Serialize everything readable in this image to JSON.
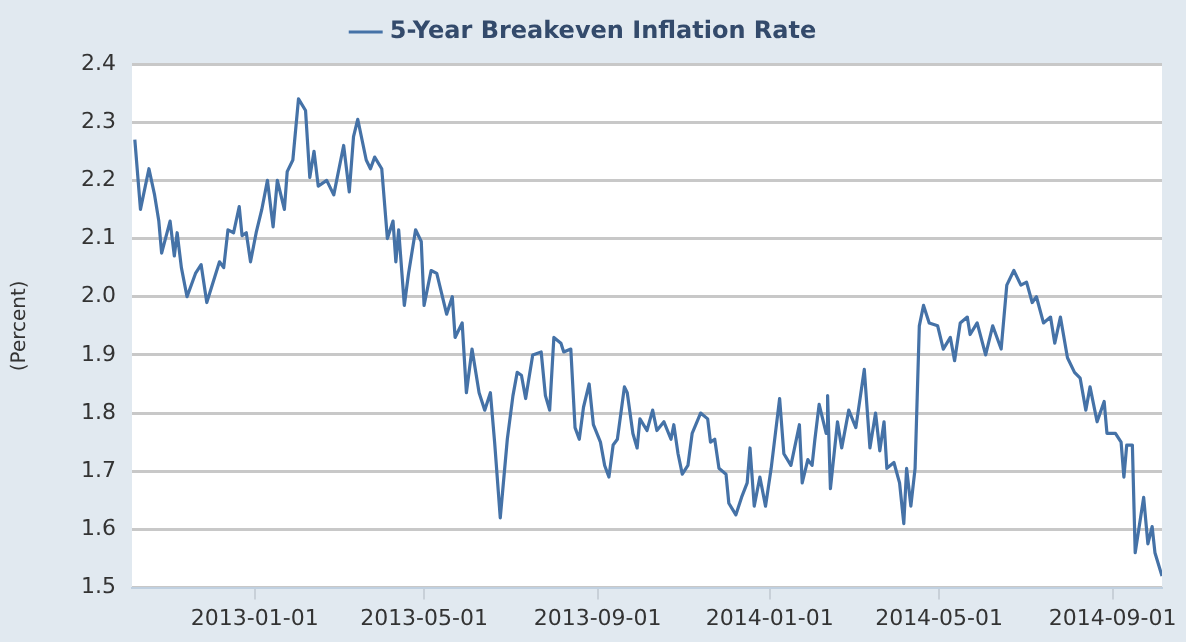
{
  "chart_data": {
    "type": "line",
    "ylabel": "(Percent)",
    "legend": "top",
    "grid": "y",
    "marker": "none",
    "line_style": "solid",
    "xlim": [
      "2012-10-06",
      "2014-10-06"
    ],
    "xticks": [
      "2013-01-01",
      "2013-05-01",
      "2013-09-01",
      "2014-01-01",
      "2014-05-01",
      "2014-09-01"
    ],
    "ylim": [
      1.5,
      2.4
    ],
    "yticks": [
      1.5,
      1.6,
      1.7,
      1.8,
      1.9,
      {
        "value": 2,
        "label": "2.0"
      },
      2.1,
      2.2,
      2.3,
      2.4
    ],
    "x": [
      "2012-10-08",
      "2012-10-12",
      "2012-10-18",
      "2012-10-22",
      "2012-10-25",
      "2012-10-27",
      "2012-11-02",
      "2012-11-05",
      "2012-11-07",
      "2012-11-10",
      "2012-11-14",
      "2012-11-20",
      "2012-11-24",
      "2012-11-28",
      "2012-12-07",
      "2012-12-10",
      "2012-12-13",
      "2012-12-17",
      "2012-12-21",
      "2012-12-23",
      "2012-12-26",
      "2012-12-29",
      "2013-01-02",
      "2013-01-06",
      "2013-01-10",
      "2013-01-14",
      "2013-01-17",
      "2013-01-22",
      "2013-01-24",
      "2013-01-28",
      "2013-02-01",
      "2013-02-06",
      "2013-02-09",
      "2013-02-12",
      "2013-02-15",
      "2013-02-21",
      "2013-02-26",
      "2013-03-05",
      "2013-03-09",
      "2013-03-12",
      "2013-03-15",
      "2013-03-21",
      "2013-03-24",
      "2013-03-27",
      "2013-04-01",
      "2013-04-05",
      "2013-04-09",
      "2013-04-11",
      "2013-04-13",
      "2013-04-17",
      "2013-04-20",
      "2013-04-25",
      "2013-04-29",
      "2013-05-01",
      "2013-05-06",
      "2013-05-10",
      "2013-05-17",
      "2013-05-21",
      "2013-05-23",
      "2013-05-28",
      "2013-05-31",
      "2013-06-04",
      "2013-06-09",
      "2013-06-13",
      "2013-06-17",
      "2013-06-20",
      "2013-06-24",
      "2013-06-29",
      "2013-07-03",
      "2013-07-06",
      "2013-07-09",
      "2013-07-12",
      "2013-07-17",
      "2013-07-23",
      "2013-07-26",
      "2013-07-29",
      "2013-08-01",
      "2013-08-06",
      "2013-08-08",
      "2013-08-13",
      "2013-08-16",
      "2013-08-19",
      "2013-08-22",
      "2013-08-26",
      "2013-08-29",
      "2013-09-03",
      "2013-09-06",
      "2013-09-09",
      "2013-09-12",
      "2013-09-15",
      "2013-09-20",
      "2013-09-22",
      "2013-09-26",
      "2013-09-29",
      "2013-10-01",
      "2013-10-06",
      "2013-10-10",
      "2013-10-13",
      "2013-10-18",
      "2013-10-23",
      "2013-10-25",
      "2013-10-28",
      "2013-10-31",
      "2013-11-04",
      "2013-11-07",
      "2013-11-13",
      "2013-11-18",
      "2013-11-20",
      "2013-11-23",
      "2013-11-26",
      "2013-12-01",
      "2013-12-03",
      "2013-12-08",
      "2013-12-12",
      "2013-12-16",
      "2013-12-18",
      "2013-12-21",
      "2013-12-25",
      "2013-12-29",
      "2014-01-02",
      "2014-01-05",
      "2014-01-08",
      "2014-01-11",
      "2014-01-16",
      "2014-01-22",
      "2014-01-24",
      "2014-01-28",
      "2014-01-31",
      "2014-02-02",
      "2014-02-05",
      "2014-02-10",
      "2014-02-11",
      "2014-02-13",
      "2014-02-18",
      "2014-02-21",
      "2014-02-26",
      "2014-03-03",
      "2014-03-09",
      "2014-03-13",
      "2014-03-17",
      "2014-03-20",
      "2014-03-23",
      "2014-03-25",
      "2014-03-30",
      "2014-04-03",
      "2014-04-06",
      "2014-04-08",
      "2014-04-11",
      "2014-04-14",
      "2014-04-17",
      "2014-04-20",
      "2014-04-24",
      "2014-04-30",
      "2014-05-04",
      "2014-05-09",
      "2014-05-12",
      "2014-05-16",
      "2014-05-21",
      "2014-05-23",
      "2014-05-28",
      "2014-06-03",
      "2014-06-08",
      "2014-06-14",
      "2014-06-18",
      "2014-06-23",
      "2014-06-28",
      "2014-07-02",
      "2014-07-06",
      "2014-07-09",
      "2014-07-14",
      "2014-07-19",
      "2014-07-22",
      "2014-07-26",
      "2014-07-31",
      "2014-08-05",
      "2014-08-09",
      "2014-08-13",
      "2014-08-16",
      "2014-08-21",
      "2014-08-26",
      "2014-08-28",
      "2014-09-03",
      "2014-09-07",
      "2014-09-09",
      "2014-09-11",
      "2014-09-15",
      "2014-09-17",
      "2014-09-23",
      "2014-09-26",
      "2014-09-29",
      "2014-10-01",
      "2014-10-06"
    ],
    "series": [
      {
        "name": "5-Year Breakeven Inflation Rate",
        "color": "#4572a7",
        "values": [
          2.27,
          2.15,
          2.22,
          2.175,
          2.13,
          2.075,
          2.13,
          2.07,
          2.11,
          2.05,
          2.0,
          2.04,
          2.055,
          1.99,
          2.06,
          2.05,
          2.115,
          2.11,
          2.155,
          2.105,
          2.11,
          2.06,
          2.11,
          2.15,
          2.2,
          2.12,
          2.2,
          2.15,
          2.215,
          2.235,
          2.34,
          2.32,
          2.205,
          2.25,
          2.19,
          2.2,
          2.175,
          2.26,
          2.18,
          2.275,
          2.305,
          2.235,
          2.22,
          2.24,
          2.22,
          2.1,
          2.13,
          2.06,
          2.115,
          1.985,
          2.04,
          2.115,
          2.095,
          1.985,
          2.045,
          2.04,
          1.97,
          2.0,
          1.93,
          1.955,
          1.835,
          1.91,
          1.835,
          1.805,
          1.835,
          1.75,
          1.62,
          1.755,
          1.83,
          1.87,
          1.865,
          1.825,
          1.9,
          1.905,
          1.83,
          1.805,
          1.93,
          1.92,
          1.905,
          1.91,
          1.775,
          1.755,
          1.81,
          1.85,
          1.78,
          1.75,
          1.71,
          1.69,
          1.745,
          1.755,
          1.845,
          1.835,
          1.765,
          1.74,
          1.79,
          1.77,
          1.805,
          1.77,
          1.785,
          1.755,
          1.78,
          1.73,
          1.695,
          1.71,
          1.765,
          1.8,
          1.79,
          1.75,
          1.755,
          1.705,
          1.695,
          1.645,
          1.625,
          1.655,
          1.68,
          1.74,
          1.64,
          1.69,
          1.64,
          1.705,
          1.765,
          1.825,
          1.73,
          1.71,
          1.78,
          1.68,
          1.72,
          1.71,
          1.755,
          1.815,
          1.765,
          1.83,
          1.67,
          1.785,
          1.74,
          1.805,
          1.775,
          1.875,
          1.74,
          1.8,
          1.735,
          1.785,
          1.705,
          1.715,
          1.68,
          1.61,
          1.705,
          1.64,
          1.705,
          1.95,
          1.985,
          1.955,
          1.95,
          1.91,
          1.93,
          1.89,
          1.955,
          1.965,
          1.935,
          1.955,
          1.9,
          1.95,
          1.91,
          2.02,
          2.045,
          2.02,
          2.025,
          1.99,
          2.0,
          1.955,
          1.965,
          1.92,
          1.965,
          1.895,
          1.87,
          1.86,
          1.805,
          1.845,
          1.785,
          1.82,
          1.765,
          1.765,
          1.75,
          1.69,
          1.745,
          1.745,
          1.56,
          1.655,
          1.575,
          1.605,
          1.56,
          1.52
        ]
      }
    ]
  }
}
